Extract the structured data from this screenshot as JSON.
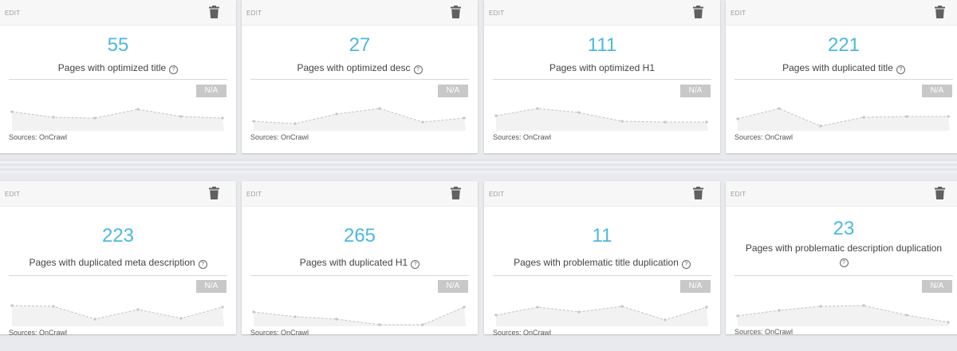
{
  "cards": [
    {
      "value": "55",
      "label": "Pages with optimized title",
      "help": true,
      "edit": "EDIT",
      "badge": "N/A",
      "source": "Sources: OnCrawl"
    },
    {
      "value": "27",
      "label": "Pages with optimized desc",
      "help": true,
      "edit": "EDIT",
      "badge": "N/A",
      "source": "Sources: OnCrawl"
    },
    {
      "value": "111",
      "label": "Pages with optimized H1",
      "help": false,
      "edit": "EDIT",
      "badge": "N/A",
      "source": "Sources: OnCrawl"
    },
    {
      "value": "221",
      "label": "Pages with duplicated title",
      "help": true,
      "edit": "EDIT",
      "badge": "N/A",
      "source": "Sources: OnCrawl"
    },
    {
      "value": "223",
      "label": "Pages with duplicated meta description",
      "help": true,
      "edit": "EDIT",
      "badge": "N/A",
      "source": "Sources: OnCrawl"
    },
    {
      "value": "265",
      "label": "Pages with duplicated H1",
      "help": true,
      "edit": "EDIT",
      "badge": "N/A",
      "source": "Sources: OnCrawl"
    },
    {
      "value": "11",
      "label": "Pages with problematic title duplication",
      "help": true,
      "edit": "EDIT",
      "badge": "N/A",
      "source": "Sources: OnCrawl"
    },
    {
      "value": "23",
      "label": "Pages with problematic description duplication",
      "help": true,
      "edit": "EDIT",
      "badge": "N/A",
      "source": "Sources: OnCrawl"
    }
  ],
  "colors": {
    "accent": "#4cb9df",
    "badge": "#c8c8c8",
    "spark_line": "#c4c4c4",
    "spark_fill": "#f2f2f2"
  },
  "icons": {
    "delete": "trash-icon",
    "help": "question-icon"
  }
}
